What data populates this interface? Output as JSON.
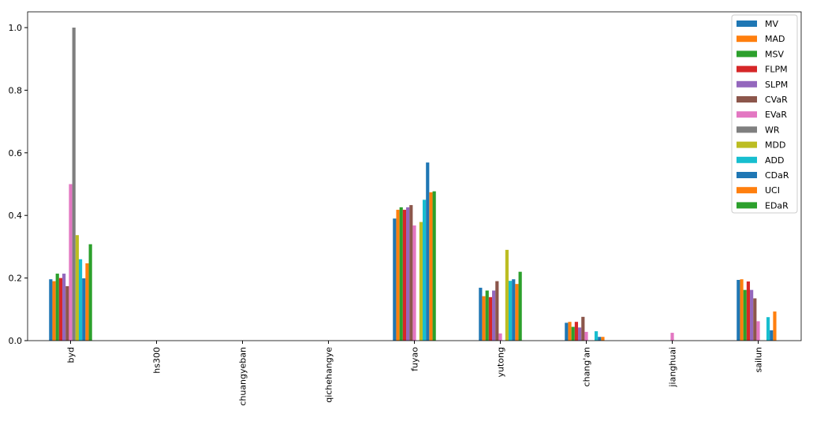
{
  "chart_data": {
    "type": "bar",
    "title": "",
    "xlabel": "",
    "ylabel": "",
    "ylim": [
      0,
      1.05
    ],
    "yticks": [
      "0.0",
      "0.2",
      "0.4",
      "0.6",
      "0.8",
      "1.0"
    ],
    "grid": false,
    "legend_placement": "top-right",
    "categories": [
      "byd",
      "hs300",
      "chuangyeban",
      "qichehangye",
      "fuyao",
      "yutong",
      "chang'an",
      "jianghuai",
      "sailun"
    ],
    "series": [
      {
        "name": "MV",
        "color": "#1f77b4",
        "values": [
          0.196,
          0,
          0,
          0,
          0.39,
          0.169,
          0.057,
          0,
          0.194
        ]
      },
      {
        "name": "MAD",
        "color": "#ff7f0e",
        "values": [
          0.19,
          0,
          0,
          0,
          0.418,
          0.142,
          0.06,
          0,
          0.196
        ]
      },
      {
        "name": "MSV",
        "color": "#2ca02c",
        "values": [
          0.214,
          0,
          0,
          0,
          0.426,
          0.16,
          0.044,
          0,
          0.162
        ]
      },
      {
        "name": "FLPM",
        "color": "#d62728",
        "values": [
          0.2,
          0,
          0,
          0,
          0.418,
          0.139,
          0.06,
          0,
          0.189
        ]
      },
      {
        "name": "SLPM",
        "color": "#9467bd",
        "values": [
          0.214,
          0,
          0,
          0,
          0.426,
          0.16,
          0.042,
          0,
          0.162
        ]
      },
      {
        "name": "CVaR",
        "color": "#8c564b",
        "values": [
          0.174,
          0,
          0,
          0,
          0.433,
          0.19,
          0.076,
          0,
          0.135
        ]
      },
      {
        "name": "EVaR",
        "color": "#e377c2",
        "values": [
          0.5,
          0,
          0,
          0,
          0.368,
          0.023,
          0.028,
          0.025,
          0.062
        ]
      },
      {
        "name": "WR",
        "color": "#7f7f7f",
        "values": [
          1.0,
          0,
          0,
          0,
          0,
          0,
          0,
          0,
          0
        ]
      },
      {
        "name": "MDD",
        "color": "#bcbd22",
        "values": [
          0.337,
          0,
          0,
          0,
          0.379,
          0.29,
          0,
          0,
          0
        ]
      },
      {
        "name": "ADD",
        "color": "#17becf",
        "values": [
          0.26,
          0,
          0,
          0,
          0.45,
          0.191,
          0.03,
          0,
          0.075
        ]
      },
      {
        "name": "CDaR",
        "color": "#1f77b4",
        "values": [
          0.199,
          0,
          0,
          0,
          0.569,
          0.196,
          0.012,
          0,
          0.033
        ]
      },
      {
        "name": "UCI",
        "color": "#ff7f0e",
        "values": [
          0.247,
          0,
          0,
          0,
          0.474,
          0.181,
          0.012,
          0,
          0.093
        ]
      },
      {
        "name": "EDaR",
        "color": "#2ca02c",
        "values": [
          0.308,
          0,
          0,
          0,
          0.477,
          0.22,
          0,
          0,
          0
        ]
      }
    ]
  }
}
